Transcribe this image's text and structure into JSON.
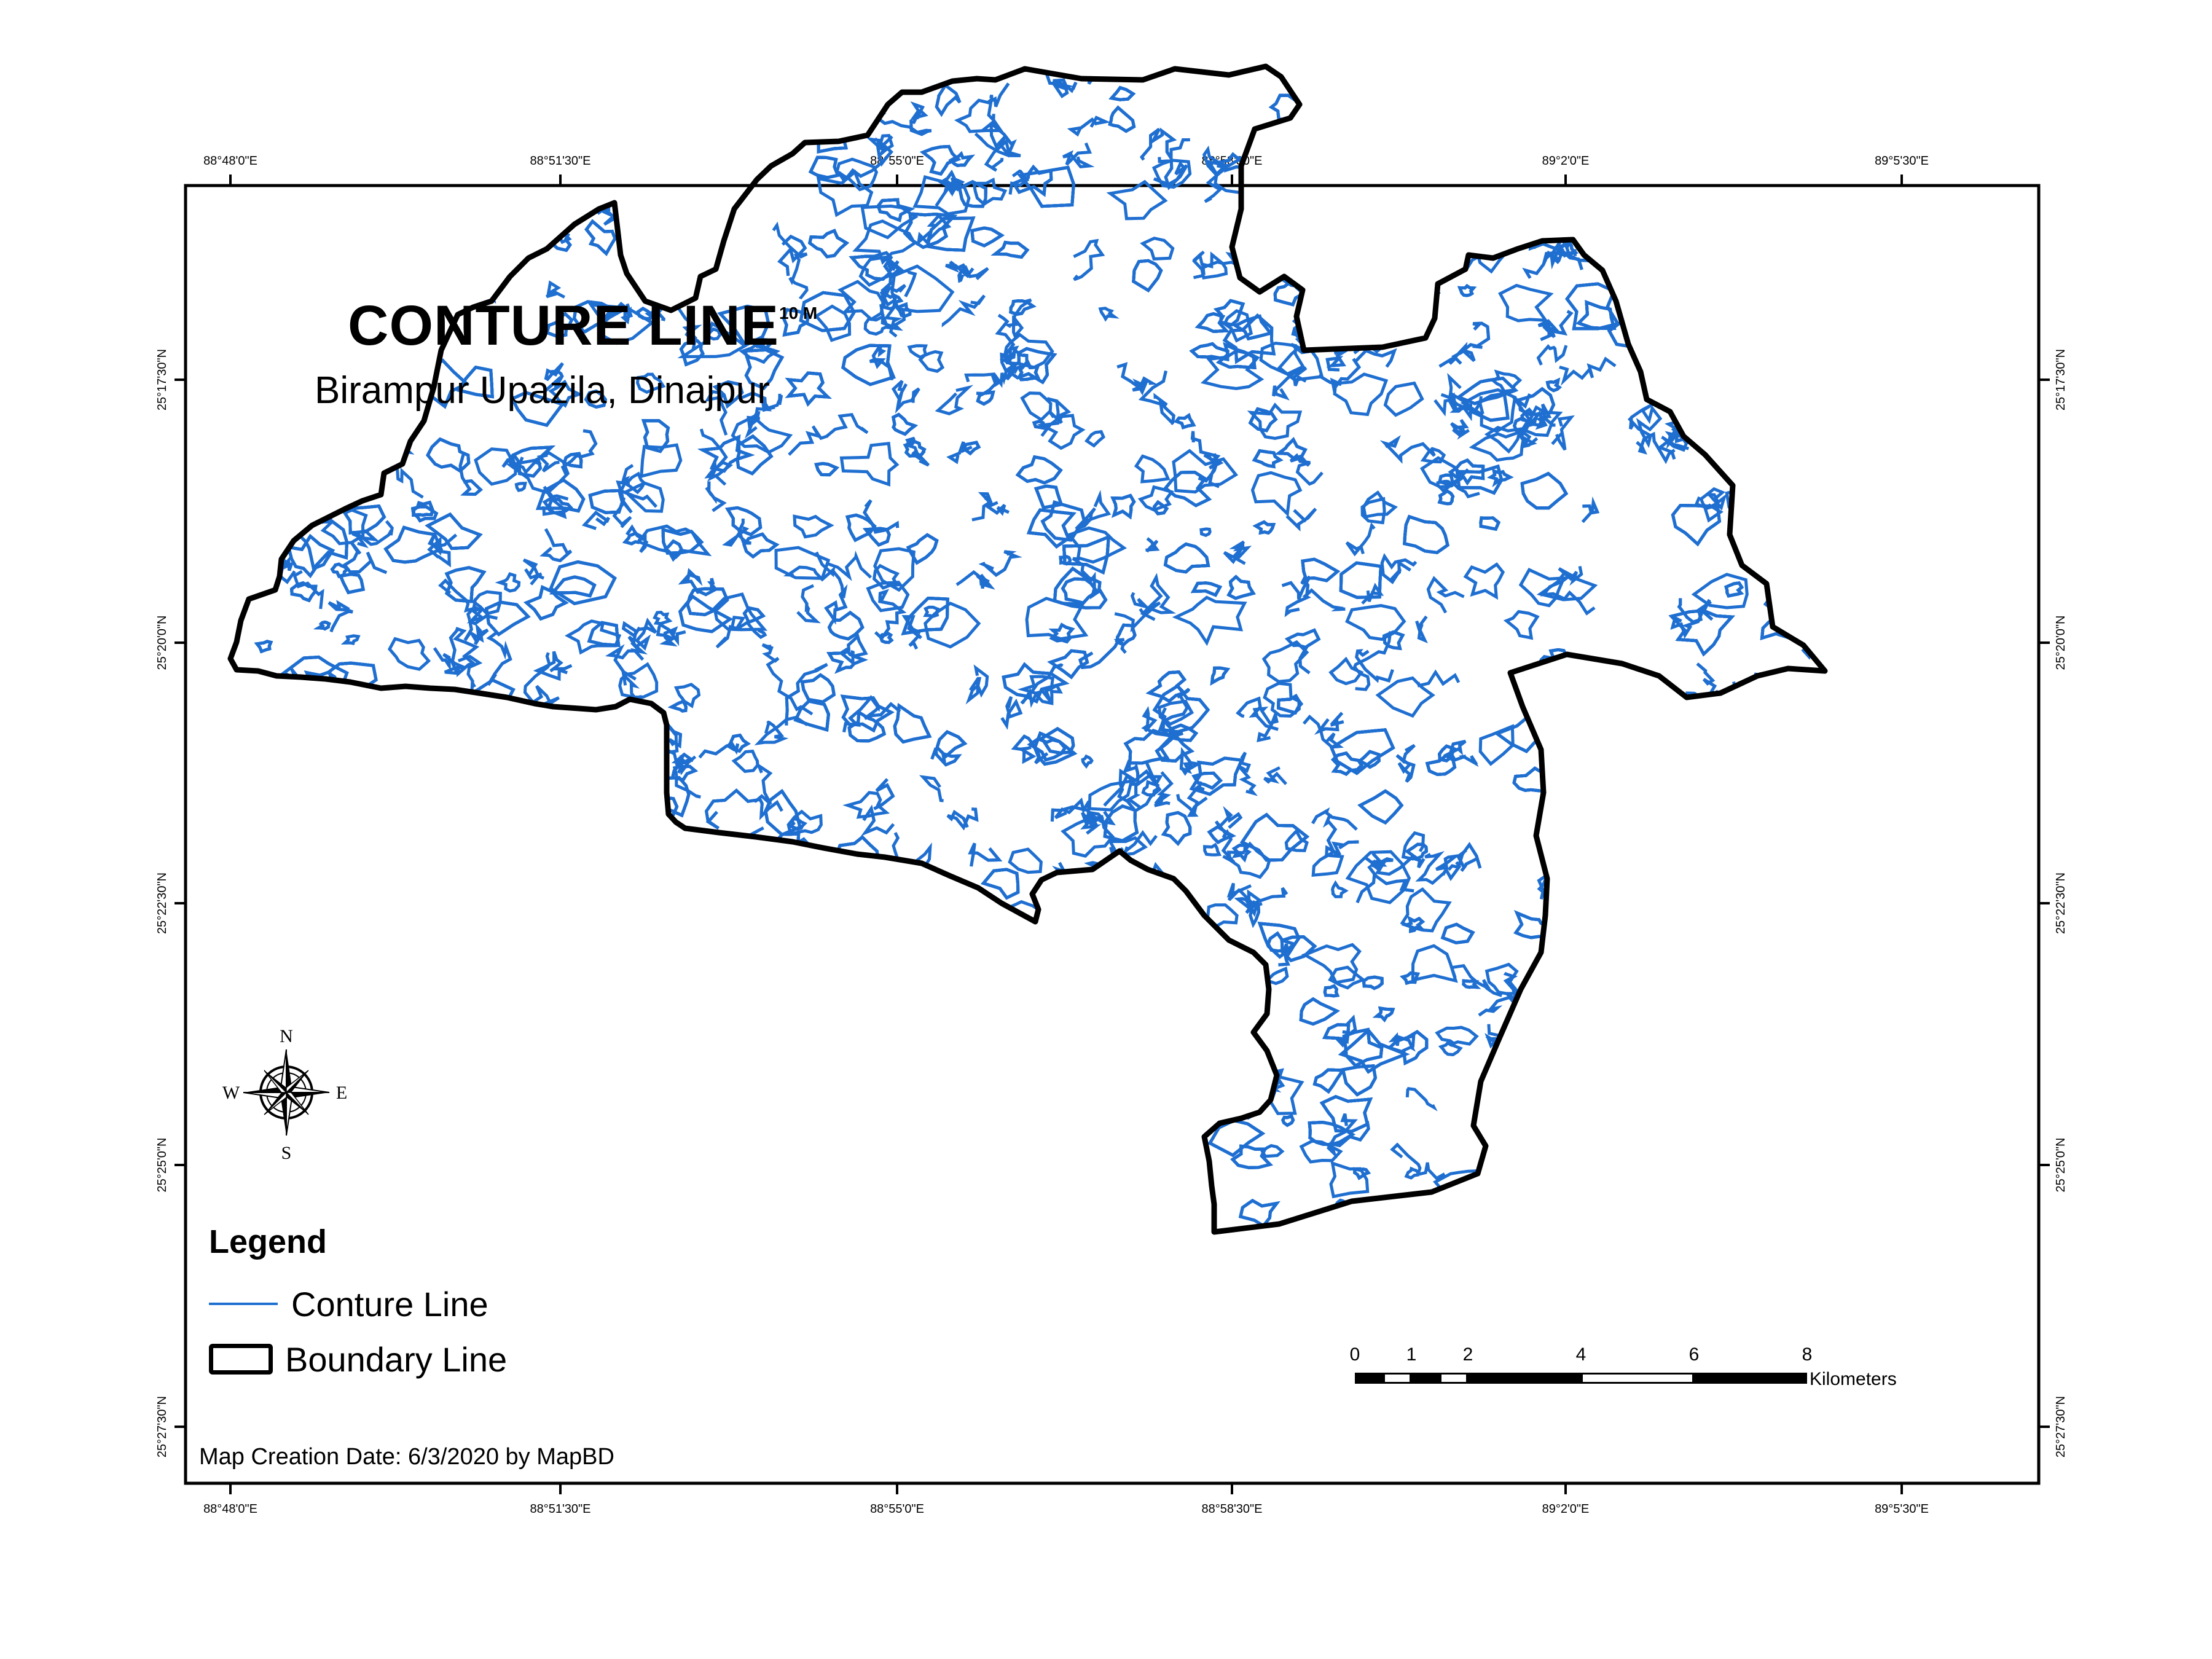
{
  "map": {
    "title": "CONTURE LINE",
    "title_superscript": "10 M",
    "subtitle": "Birampur Upazila, Dinajpur",
    "credit": "Map Creation Date: 6/3/2020 by MapBD",
    "colors": {
      "contour": "#1f6fd1",
      "boundary": "#000000",
      "background": "#ffffff"
    }
  },
  "graticule": {
    "longitude_labels": [
      "88°48'0\"E",
      "88°51'30\"E",
      "88°55'0\"E",
      "88°58'30\"E",
      "89°2'0\"E",
      "89°5'30\"E"
    ],
    "latitude_labels": [
      "25°27'30\"N",
      "25°25'0\"N",
      "25°22'30\"N",
      "25°20'0\"N",
      "25°17'30\"N"
    ]
  },
  "legend": {
    "title": "Legend",
    "items": [
      {
        "label": "Conture Line",
        "symbol": "line"
      },
      {
        "label": "Boundary Line",
        "symbol": "polygon-outline"
      }
    ]
  },
  "scale_bar": {
    "labels": [
      "0",
      "1",
      "2",
      "4",
      "6",
      "8"
    ],
    "unit": "Kilometers"
  },
  "north_arrow": {
    "icon": "compass-rose-icon",
    "labels": {
      "n": "N",
      "e": "E",
      "s": "S",
      "w": "W"
    }
  }
}
